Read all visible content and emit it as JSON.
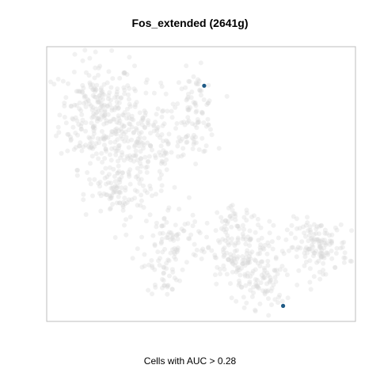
{
  "chart_data": {
    "type": "scatter",
    "title": "Fos_extended (2641g)",
    "xlabel": "Cells with AUC > 0.28",
    "ylabel": "",
    "grid": false,
    "legend": "none",
    "colors": {
      "background_points": "#d8d8d8",
      "highlight_points": "#1f5a85",
      "frame": "#bdbdbd"
    },
    "xlim": [
      0,
      100
    ],
    "ylim": [
      0,
      100
    ],
    "highlighted": [
      {
        "x": 51.0,
        "y": 86.0
      },
      {
        "x": 76.7,
        "y": 5.4
      }
    ],
    "background_regions": [
      {
        "cx": 16,
        "cy": 76,
        "rx": 11,
        "ry": 18,
        "n": 240
      },
      {
        "cx": 30,
        "cy": 64,
        "rx": 14,
        "ry": 18,
        "n": 230
      },
      {
        "cx": 48,
        "cy": 76,
        "rx": 6,
        "ry": 14,
        "n": 90
      },
      {
        "cx": 22,
        "cy": 46,
        "rx": 9,
        "ry": 9,
        "n": 70
      },
      {
        "cx": 40,
        "cy": 30,
        "rx": 9,
        "ry": 11,
        "n": 80
      },
      {
        "cx": 38,
        "cy": 16,
        "rx": 5,
        "ry": 6,
        "n": 30
      },
      {
        "cx": 63,
        "cy": 23,
        "rx": 12,
        "ry": 12,
        "n": 170
      },
      {
        "cx": 70,
        "cy": 12,
        "rx": 7,
        "ry": 7,
        "n": 50
      },
      {
        "cx": 88,
        "cy": 27,
        "rx": 9,
        "ry": 9,
        "n": 140
      },
      {
        "cx": 61,
        "cy": 37,
        "rx": 6,
        "ry": 4,
        "n": 30
      }
    ]
  }
}
